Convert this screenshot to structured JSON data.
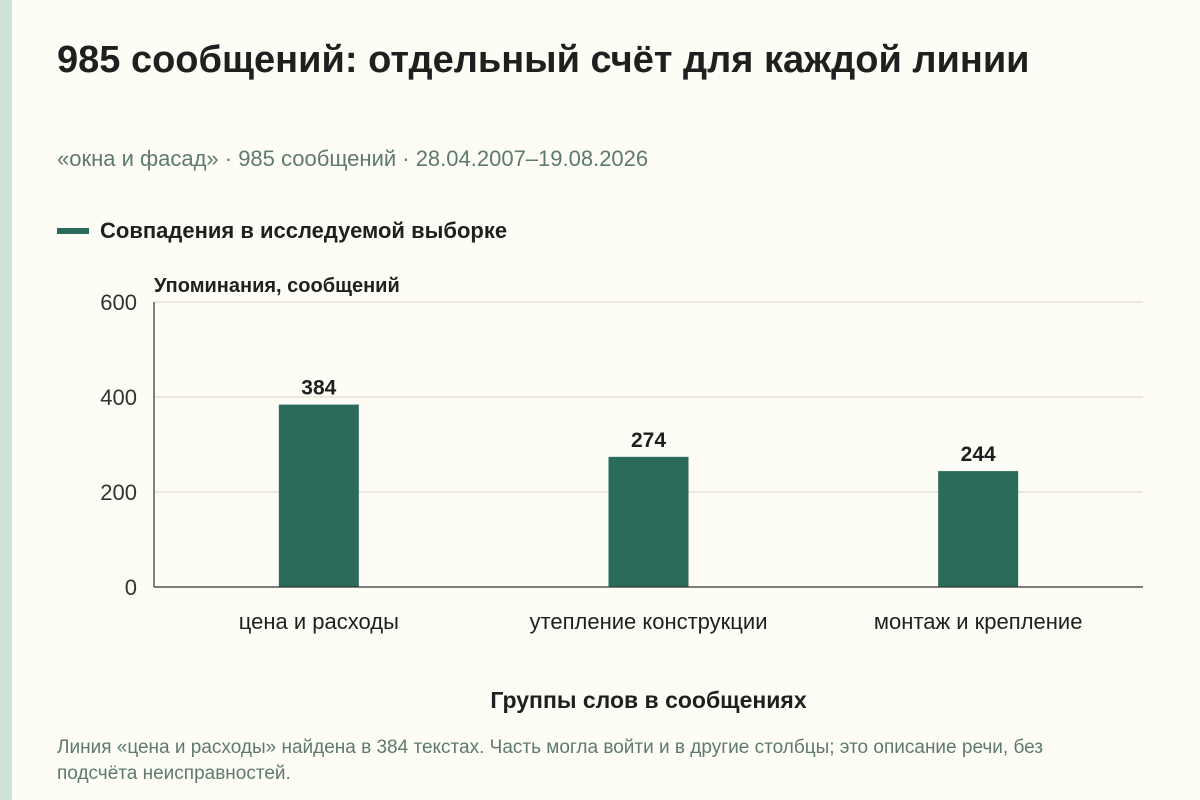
{
  "colors": {
    "bar": "#2a6b5b",
    "grid": "#d9d6c8",
    "axis": "#333333",
    "background": "#fdfcf5",
    "muted": "#5e7a6e"
  },
  "header": {
    "title": "985 сообщений: отдельный счёт для каждой линии",
    "subtitle": "«окна и фасад» · 985 сообщений · 28.04.2007–19.08.2026"
  },
  "footer": {
    "note": "Линия «цена и расходы» найдена в 384 текстах. Часть могла войти и в другие столбцы; это описание речи, без подсчёта неисправностей."
  },
  "chart_data": {
    "type": "bar",
    "title": "985 сообщений: отдельный счёт для каждой линии",
    "subtitle": "«окна и фасад» · 985 сообщений · 28.04.2007–19.08.2026",
    "xlabel": "Группы слов в сообщениях",
    "ylabel": "Упоминания, сообщений",
    "ylim": [
      0,
      600
    ],
    "yticks": [
      0,
      200,
      400,
      600
    ],
    "grid": true,
    "legend_position": "top-left",
    "categories": [
      "цена и расходы",
      "утепление конструкции",
      "монтаж и крепление"
    ],
    "series": [
      {
        "name": "Совпадения в исследуемой выборке",
        "values": [
          384,
          274,
          244
        ]
      }
    ]
  }
}
